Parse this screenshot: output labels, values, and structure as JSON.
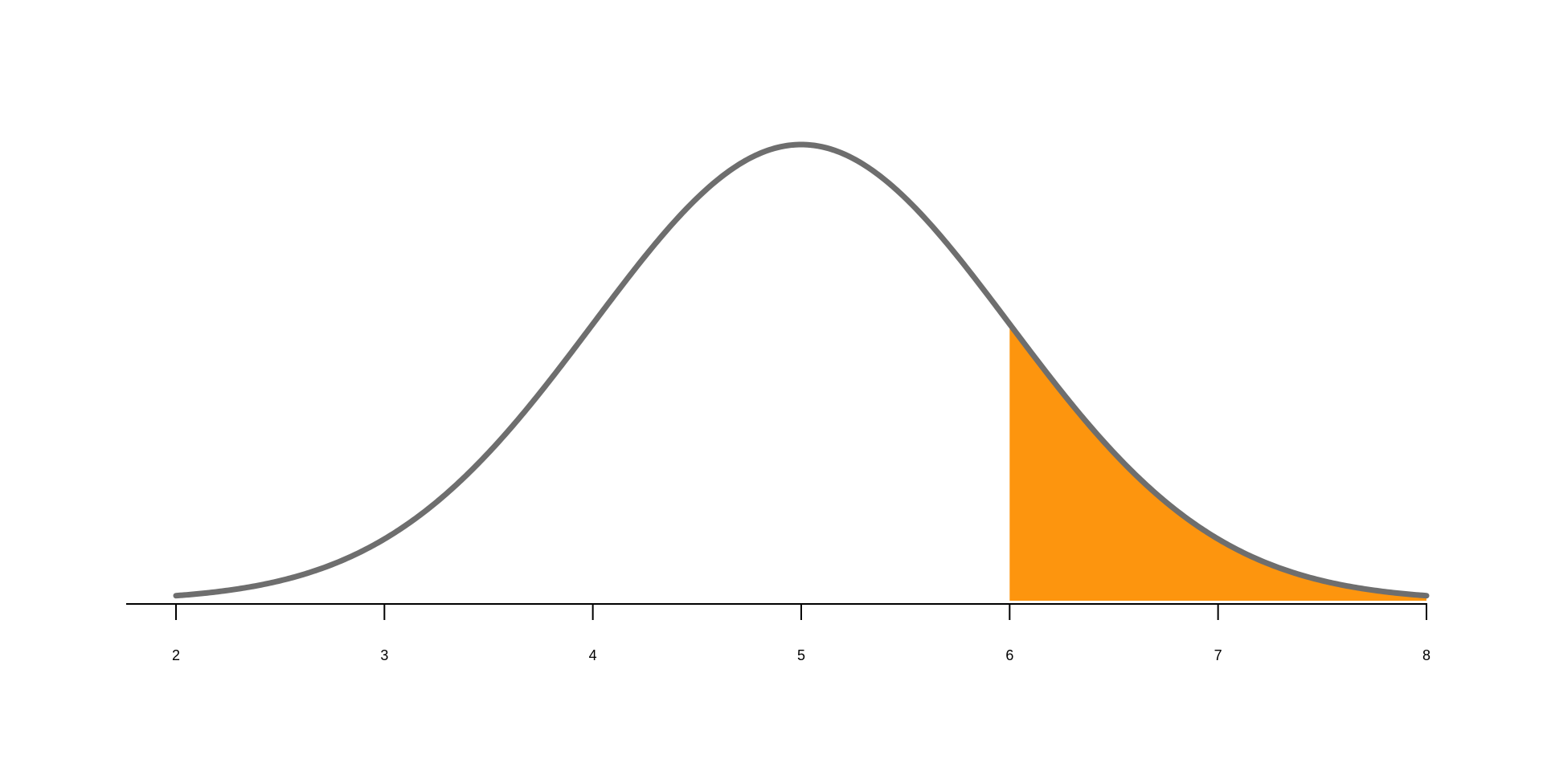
{
  "chart_data": {
    "type": "area",
    "distribution": "normal",
    "mean": 5,
    "sd": 1,
    "xlim": [
      2,
      8
    ],
    "x_ticks": [
      2,
      3,
      4,
      5,
      6,
      7,
      8
    ],
    "x_tick_labels": [
      "2",
      "3",
      "4",
      "5",
      "6",
      "7",
      "8"
    ],
    "shaded_region": {
      "from": 6,
      "to": 8
    },
    "title": "",
    "xlabel": "",
    "ylabel": "",
    "grid": false,
    "colors": {
      "curve": "#6e6e6e",
      "shade": "#fd950e",
      "axis": "#000000"
    }
  }
}
